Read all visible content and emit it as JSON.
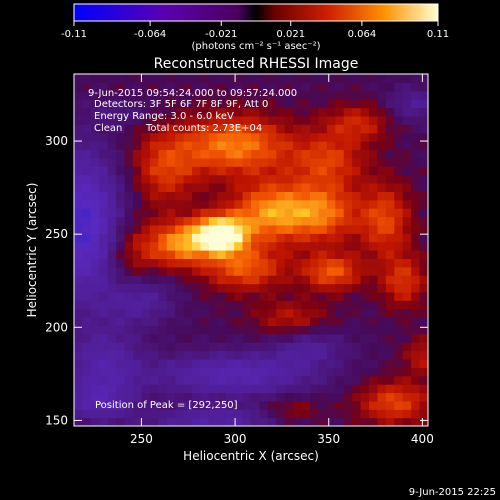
{
  "colorbar": {
    "tick_labels": [
      "-0.11",
      "-0.064",
      "-0.021",
      "0.021",
      "0.064",
      "0.11"
    ],
    "tick_values": [
      -0.11,
      -0.064,
      -0.021,
      0.021,
      0.064,
      0.11
    ],
    "range": [
      -0.11,
      0.11
    ],
    "units_label": "(photons cm⁻² s⁻¹ asec⁻²)"
  },
  "chart_data": {
    "type": "heatmap",
    "title": "Reconstructed RHESSI Image",
    "xlabel": "Heliocentric X (arcsec)",
    "ylabel": "Heliocentric Y (arcsec)",
    "xlim": [
      214,
      403
    ],
    "ylim": [
      147,
      336
    ],
    "x_ticks": [
      250,
      300,
      350,
      400
    ],
    "y_ticks": [
      150,
      200,
      250,
      300
    ],
    "x_tick_labels": [
      "250",
      "300",
      "350",
      "400"
    ],
    "y_tick_labels": [
      "150",
      "200",
      "250",
      "300"
    ],
    "peak": [
      292,
      250
    ],
    "annotations": {
      "time_range": "9-Jun-2015 09:54:24.000 to 09:57:24.000",
      "detectors": "Detectors: 3F 5F 6F 7F 8F 9F, Att 0",
      "energy": "Energy Range: 3.0 - 6.0 keV",
      "clean": "Clean",
      "counts": "Total counts: 2.73E+04",
      "peak_label": "Position of Peak = [292,250]"
    }
  },
  "footer": {
    "timestamp": "9-Jun-2015 22:25"
  }
}
